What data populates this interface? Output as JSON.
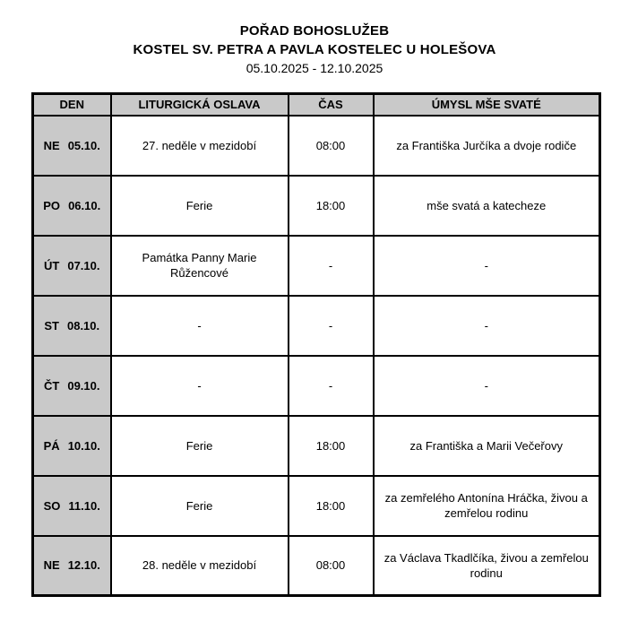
{
  "page": {
    "title_line1": "POŘAD BOHOSLUŽEB",
    "title_line2": "KOSTEL SV. PETRA A PAVLA KOSTELEC U HOLEŠOVA",
    "date_range": "05.10.2025 - 12.10.2025"
  },
  "table": {
    "headers": [
      "DEN",
      "LITURGICKÁ OSLAVA",
      "ČAS",
      "ÚMYSL MŠE SVATÉ"
    ],
    "rows": [
      {
        "day": "NE",
        "date": "05.10.",
        "celebration": "27. neděle v mezidobí",
        "time": "08:00",
        "intention": "za Františka Jurčíka a dvoje rodiče"
      },
      {
        "day": "PO",
        "date": "06.10.",
        "celebration": "Ferie",
        "time": "18:00",
        "intention": "mše svatá a katecheze"
      },
      {
        "day": "ÚT",
        "date": "07.10.",
        "celebration": "Památka Panny Marie Růžencové",
        "time": "-",
        "intention": "-"
      },
      {
        "day": "ST",
        "date": "08.10.",
        "celebration": "-",
        "time": "-",
        "intention": "-"
      },
      {
        "day": "ČT",
        "date": "09.10.",
        "celebration": "-",
        "time": "-",
        "intention": "-"
      },
      {
        "day": "PÁ",
        "date": "10.10.",
        "celebration": "Ferie",
        "time": "18:00",
        "intention": "za Františka a Marii Večeřovy"
      },
      {
        "day": "SO",
        "date": "11.10.",
        "celebration": "Ferie",
        "time": "18:00",
        "intention": "za zemřelého Antonína Hráčka, živou a zemřelou rodinu"
      },
      {
        "day": "NE",
        "date": "12.10.",
        "celebration": "28. neděle v mezidobí",
        "time": "08:00",
        "intention": "za Václava Tkadlčíka, živou a zemřelou rodinu"
      }
    ],
    "colors": {
      "header_bg": "#c9c9c9",
      "day_column_bg": "#c9c9c9",
      "border": "#000000"
    }
  }
}
